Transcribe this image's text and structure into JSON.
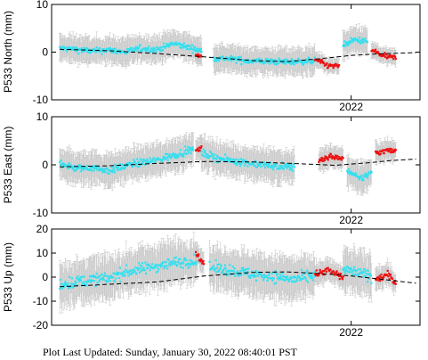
{
  "footer": {
    "text": "Plot Last Updated:   Sunday, January 30, 2022 08:40:01 PST"
  },
  "colors": {
    "data": "#33e0f0",
    "recent": "#ee1111",
    "errorbar": "#c8c8c8",
    "trend": "#000000"
  },
  "chart_data": [
    {
      "type": "scatter",
      "ylabel": "P533 North (mm)",
      "ylim": [
        -10,
        10
      ],
      "yticks": [
        -10,
        0,
        10
      ],
      "xlim": [
        2018.3,
        2022.85
      ],
      "xticks": [
        2022
      ],
      "xtick_labels": [
        "2022"
      ],
      "grid": false,
      "trend": [
        [
          2018.4,
          0.6
        ],
        [
          2019.0,
          0.3
        ],
        [
          2019.6,
          -0.3
        ],
        [
          2020.2,
          -1.0
        ],
        [
          2020.8,
          -1.8
        ],
        [
          2021.2,
          -2.0
        ],
        [
          2021.6,
          -1.4
        ],
        [
          2022.0,
          -0.7
        ],
        [
          2022.3,
          -0.4
        ],
        [
          2022.8,
          -0.1
        ]
      ],
      "series": [
        {
          "color": "cyan",
          "segments": [
            {
              "start": 2018.4,
              "end": 2020.15,
              "points": [
                [
                  2018.4,
                  0.8
                ],
                [
                  2018.6,
                  0.6
                ],
                [
                  2018.8,
                  0.2
                ],
                [
                  2019.0,
                  0.5
                ],
                [
                  2019.2,
                  0.0
                ],
                [
                  2019.4,
                  0.8
                ],
                [
                  2019.6,
                  0.5
                ],
                [
                  2019.8,
                  1.8
                ],
                [
                  2020.0,
                  1.0
                ],
                [
                  2020.15,
                  0.2
                ]
              ]
            },
            {
              "start": 2020.3,
              "end": 2021.55,
              "points": [
                [
                  2020.3,
                  -1.2
                ],
                [
                  2020.5,
                  -1.4
                ],
                [
                  2020.7,
                  -1.8
                ],
                [
                  2020.9,
                  -1.9
                ],
                [
                  2021.1,
                  -2.0
                ],
                [
                  2021.3,
                  -2.0
                ],
                [
                  2021.55,
                  -1.8
                ]
              ]
            },
            {
              "start": 2021.9,
              "end": 2022.2,
              "points": [
                [
                  2021.9,
                  1.5
                ],
                [
                  2022.05,
                  2.6
                ],
                [
                  2022.2,
                  2.2
                ]
              ]
            }
          ],
          "noise": 1.1,
          "err": 2.5
        },
        {
          "color": "red",
          "segments": [
            {
              "start": 2020.08,
              "end": 2020.15,
              "points": [
                [
                  2020.08,
                  -0.6
                ],
                [
                  2020.15,
                  -1.0
                ]
              ]
            },
            {
              "start": 2021.55,
              "end": 2021.85,
              "points": [
                [
                  2021.55,
                  -1.5
                ],
                [
                  2021.7,
                  -2.8
                ],
                [
                  2021.85,
                  -3.0
                ]
              ]
            },
            {
              "start": 2022.25,
              "end": 2022.55,
              "points": [
                [
                  2022.25,
                  0.5
                ],
                [
                  2022.4,
                  -0.8
                ],
                [
                  2022.55,
                  -1.2
                ]
              ]
            }
          ],
          "noise": 0.9,
          "err": 1.4
        }
      ]
    },
    {
      "type": "scatter",
      "ylabel": "P533 East (mm)",
      "ylim": [
        -10,
        10
      ],
      "yticks": [
        -10,
        0,
        10
      ],
      "xlim": [
        2018.3,
        2022.85
      ],
      "xticks": [
        2022
      ],
      "xtick_labels": [
        "2022"
      ],
      "grid": false,
      "trend": [
        [
          2018.4,
          -0.4
        ],
        [
          2019.0,
          -0.2
        ],
        [
          2019.6,
          0.3
        ],
        [
          2020.2,
          0.7
        ],
        [
          2020.8,
          0.6
        ],
        [
          2021.4,
          0.2
        ],
        [
          2021.8,
          -0.1
        ],
        [
          2022.2,
          0.4
        ],
        [
          2022.5,
          0.9
        ],
        [
          2022.8,
          1.2
        ]
      ],
      "series": [
        {
          "color": "cyan",
          "segments": [
            {
              "start": 2018.4,
              "end": 2020.05,
              "points": [
                [
                  2018.4,
                  0.5
                ],
                [
                  2018.6,
                  -0.8
                ],
                [
                  2018.8,
                  -0.5
                ],
                [
                  2019.0,
                  -1.2
                ],
                [
                  2019.3,
                  0.2
                ],
                [
                  2019.6,
                  1.0
                ],
                [
                  2019.9,
                  2.5
                ],
                [
                  2020.05,
                  3.2
                ]
              ]
            },
            {
              "start": 2020.15,
              "end": 2021.3,
              "points": [
                [
                  2020.15,
                  2.5
                ],
                [
                  2020.4,
                  1.2
                ],
                [
                  2020.7,
                  0.5
                ],
                [
                  2021.0,
                  -0.2
                ],
                [
                  2021.3,
                  -0.5
                ]
              ]
            },
            {
              "start": 2021.95,
              "end": 2022.25,
              "points": [
                [
                  2021.95,
                  -1.0
                ],
                [
                  2022.1,
                  -3.0
                ],
                [
                  2022.25,
                  -1.5
                ]
              ]
            }
          ],
          "noise": 1.3,
          "err": 3.0
        },
        {
          "color": "red",
          "segments": [
            {
              "start": 2020.08,
              "end": 2020.15,
              "points": [
                [
                  2020.08,
                  2.8
                ],
                [
                  2020.15,
                  3.8
                ]
              ]
            },
            {
              "start": 2021.6,
              "end": 2021.9,
              "points": [
                [
                  2021.6,
                  1.0
                ],
                [
                  2021.75,
                  1.8
                ],
                [
                  2021.9,
                  1.2
                ]
              ]
            },
            {
              "start": 2022.3,
              "end": 2022.55,
              "points": [
                [
                  2022.3,
                  2.5
                ],
                [
                  2022.45,
                  3.0
                ],
                [
                  2022.55,
                  2.8
                ]
              ]
            }
          ],
          "noise": 1.0,
          "err": 2.0
        }
      ]
    },
    {
      "type": "scatter",
      "ylabel": "P533 Up (mm)",
      "ylim": [
        -20,
        20
      ],
      "yticks": [
        -20,
        -10,
        0,
        10,
        20
      ],
      "xlim": [
        2018.3,
        2022.85
      ],
      "xticks": [
        2022
      ],
      "xtick_labels": [
        "2022"
      ],
      "grid": false,
      "trend": [
        [
          2018.4,
          -4.0
        ],
        [
          2019.0,
          -3.0
        ],
        [
          2019.6,
          -2.0
        ],
        [
          2020.2,
          0.5
        ],
        [
          2020.8,
          2.0
        ],
        [
          2021.2,
          2.2
        ],
        [
          2021.6,
          1.5
        ],
        [
          2022.0,
          0.5
        ],
        [
          2022.4,
          -1.0
        ],
        [
          2022.8,
          -2.5
        ]
      ],
      "series": [
        {
          "color": "cyan",
          "segments": [
            {
              "start": 2018.4,
              "end": 2020.1,
              "points": [
                [
                  2018.4,
                  -3.0
                ],
                [
                  2018.6,
                  -2.0
                ],
                [
                  2018.8,
                  -1.0
                ],
                [
                  2019.0,
                  -0.5
                ],
                [
                  2019.2,
                  2.0
                ],
                [
                  2019.5,
                  4.0
                ],
                [
                  2019.8,
                  6.0
                ],
                [
                  2020.1,
                  7.0
                ]
              ]
            },
            {
              "start": 2020.25,
              "end": 2021.55,
              "points": [
                [
                  2020.25,
                  4.0
                ],
                [
                  2020.5,
                  3.0
                ],
                [
                  2020.8,
                  1.0
                ],
                [
                  2021.1,
                  0.0
                ],
                [
                  2021.3,
                  -1.0
                ],
                [
                  2021.55,
                  0.5
                ]
              ]
            },
            {
              "start": 2021.9,
              "end": 2022.25,
              "points": [
                [
                  2021.9,
                  3.0
                ],
                [
                  2022.05,
                  2.0
                ],
                [
                  2022.25,
                  0.5
                ]
              ]
            }
          ],
          "noise": 4.0,
          "err": 8.0
        },
        {
          "color": "red",
          "segments": [
            {
              "start": 2020.08,
              "end": 2020.18,
              "points": [
                [
                  2020.08,
                  10.0
                ],
                [
                  2020.18,
                  6.0
                ]
              ]
            },
            {
              "start": 2021.55,
              "end": 2021.9,
              "points": [
                [
                  2021.55,
                  1.0
                ],
                [
                  2021.7,
                  3.0
                ],
                [
                  2021.9,
                  0.0
                ]
              ]
            },
            {
              "start": 2022.3,
              "end": 2022.55,
              "points": [
                [
                  2022.3,
                  -1.0
                ],
                [
                  2022.45,
                  1.0
                ],
                [
                  2022.55,
                  -2.5
                ]
              ]
            }
          ],
          "noise": 2.5,
          "err": 4.0
        }
      ]
    }
  ]
}
